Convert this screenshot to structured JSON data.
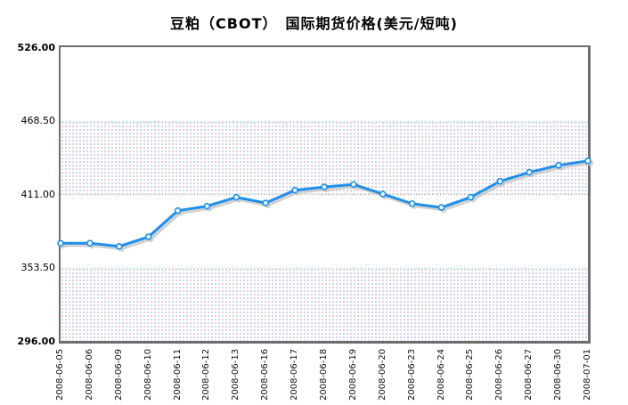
{
  "title": "豆粕（CBOT）　国际期货价格(美元/短吨)",
  "chart_data": {
    "type": "line",
    "title": "豆粕（CBOT）　国际期货价格(美元/短吨)",
    "categories": [
      "2008-06-05",
      "2008-06-06",
      "2008-06-09",
      "2008-06-10",
      "2008-06-11",
      "2008-06-12",
      "2008-06-13",
      "2008-06-16",
      "2008-06-17",
      "2008-06-18",
      "2008-06-19",
      "2008-06-20",
      "2008-06-23",
      "2008-06-24",
      "2008-06-25",
      "2008-06-26",
      "2008-06-27",
      "2008-06-30",
      "2008-07-01"
    ],
    "values": [
      372.5,
      372.5,
      370.0,
      377.5,
      398.0,
      401.5,
      408.5,
      404.0,
      414.0,
      416.5,
      418.5,
      411.0,
      403.5,
      400.5,
      408.5,
      421.0,
      428.0,
      433.5,
      437.0
    ],
    "xlabel": "",
    "ylabel": "",
    "ylim": [
      296.0,
      526.0
    ],
    "yticks": [
      526.0,
      468.5,
      411.0,
      353.5,
      296.0
    ],
    "ytick_labels": [
      "526.00",
      "468.50",
      "411.00",
      "353.50",
      "296.00"
    ],
    "grid": "dotted horizontal gridlines with alternating dotted fill bands",
    "legend": "none"
  },
  "colors": {
    "line": "#1f8feb",
    "marker_fill": "#eef6fe",
    "marker_stroke": "#1f8feb",
    "shadow": "#c6c6c6",
    "plot_border": "#6e6e6e",
    "band_dot_blue": "#a6cdef",
    "band_dot_pink": "#f2b6ca",
    "gridline_gray": "#a6a6a6",
    "gridline_aqua": "#8fd6d6",
    "text": "#000000"
  }
}
